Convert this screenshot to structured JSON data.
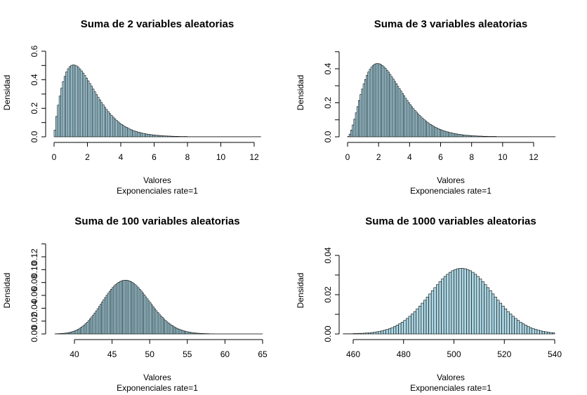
{
  "style": {
    "bar_fill": "#add8e6",
    "bar_stroke": "#000000"
  },
  "chart_data": [
    {
      "type": "bar",
      "title": "Suma de 2 variables aleatorias",
      "xlabel": "Valores",
      "sub": "Exponenciales rate=1",
      "ylabel": "Densidad",
      "xlim": [
        0,
        12.4
      ],
      "ylim": [
        0,
        0.62
      ],
      "xticks": [
        0,
        2,
        4,
        6,
        8,
        10,
        12
      ],
      "xtick_labels": [
        "0",
        "2",
        "4",
        "6",
        "8",
        "10",
        "12"
      ],
      "yticks": [
        0.0,
        0.1,
        0.2,
        0.3,
        0.4,
        0.5,
        0.6
      ],
      "ytick_labels": [
        "0.0",
        "",
        "0.2",
        "",
        "0.4",
        "",
        "0.6"
      ],
      "bin_width": 0.1,
      "bin_start": 0,
      "values": [
        0.047,
        0.143,
        0.222,
        0.286,
        0.341,
        0.387,
        0.424,
        0.455,
        0.477,
        0.492,
        0.501,
        0.504,
        0.502,
        0.497,
        0.488,
        0.476,
        0.462,
        0.447,
        0.43,
        0.412,
        0.393,
        0.374,
        0.355,
        0.335,
        0.316,
        0.296,
        0.277,
        0.259,
        0.241,
        0.224,
        0.207,
        0.192,
        0.177,
        0.163,
        0.15,
        0.138,
        0.126,
        0.115,
        0.105,
        0.096,
        0.087,
        0.08,
        0.072,
        0.066,
        0.06,
        0.054,
        0.049,
        0.044,
        0.04,
        0.036,
        0.033,
        0.03,
        0.027,
        0.024,
        0.022,
        0.02,
        0.018,
        0.016,
        0.015,
        0.013,
        0.012,
        0.011,
        0.01,
        0.009,
        0.008,
        0.007,
        0.006,
        0.006,
        0.005,
        0.005,
        0.004,
        0.004,
        0.003,
        0.003,
        0.003,
        0.002,
        0.002,
        0.002,
        0.002,
        0.002,
        0.001,
        0.001,
        0.001,
        0.001,
        0.001,
        0.001,
        0.001,
        0.001,
        0.001,
        0.001,
        0.001,
        0.001,
        0.001,
        0.001,
        0.001,
        0.001,
        0.001,
        0.001,
        0.001,
        0.001,
        0.001,
        0.001,
        0.001,
        0.001,
        0.001,
        0.001,
        0.001,
        0.001,
        0.001,
        0.001,
        0.001,
        0.001,
        0.001,
        0.001,
        0.001,
        0.001,
        0.001,
        0.001,
        0.001,
        0.001,
        0.001,
        0.001,
        0.001,
        0.001
      ]
    },
    {
      "type": "bar",
      "title": "Suma de 3 variables aleatorias",
      "xlabel": "Valores",
      "sub": "Exponenciales rate=1",
      "ylabel": "Densidad",
      "xlim": [
        0,
        13.4
      ],
      "ylim": [
        0,
        0.51
      ],
      "xticks": [
        0,
        2,
        4,
        6,
        8,
        10,
        12
      ],
      "xtick_labels": [
        "0",
        "2",
        "4",
        "6",
        "8",
        "10",
        "12"
      ],
      "yticks": [
        0.0,
        0.1,
        0.2,
        0.3,
        0.4,
        0.5
      ],
      "ytick_labels": [
        "0.0",
        "",
        "0.2",
        "",
        "0.4",
        ""
      ],
      "bin_width": 0.1,
      "bin_start": 0,
      "values": [
        0.002,
        0.016,
        0.04,
        0.07,
        0.104,
        0.141,
        0.178,
        0.214,
        0.249,
        0.281,
        0.311,
        0.337,
        0.361,
        0.381,
        0.397,
        0.41,
        0.42,
        0.427,
        0.43,
        0.431,
        0.429,
        0.425,
        0.419,
        0.411,
        0.402,
        0.391,
        0.38,
        0.367,
        0.354,
        0.34,
        0.326,
        0.312,
        0.297,
        0.283,
        0.269,
        0.255,
        0.241,
        0.227,
        0.214,
        0.201,
        0.189,
        0.177,
        0.166,
        0.155,
        0.145,
        0.135,
        0.125,
        0.117,
        0.108,
        0.1,
        0.093,
        0.086,
        0.079,
        0.073,
        0.068,
        0.062,
        0.057,
        0.053,
        0.048,
        0.044,
        0.041,
        0.037,
        0.034,
        0.031,
        0.029,
        0.026,
        0.024,
        0.022,
        0.02,
        0.018,
        0.017,
        0.015,
        0.014,
        0.013,
        0.011,
        0.01,
        0.009,
        0.009,
        0.008,
        0.007,
        0.006,
        0.006,
        0.005,
        0.005,
        0.004,
        0.004,
        0.004,
        0.003,
        0.003,
        0.003,
        0.002,
        0.002,
        0.002,
        0.002,
        0.002,
        0.002,
        0.001,
        0.001,
        0.001,
        0.001,
        0.001,
        0.001,
        0.001,
        0.001,
        0.001,
        0.001,
        0.001,
        0.001,
        0.001,
        0.001,
        0.001,
        0.001,
        0.001,
        0.001,
        0.001,
        0.001,
        0.001,
        0.001,
        0.001,
        0.001,
        0.001,
        0.001,
        0.001,
        0.001,
        0.001,
        0.001,
        0.001,
        0.001,
        0.001,
        0.001,
        0.001,
        0.001,
        0.001,
        0.001
      ]
    },
    {
      "type": "bar",
      "title": "Suma de 100 variables aleatorias",
      "xlabel": "Valores",
      "sub": "Exponenciales rate=1",
      "ylabel": "Densidad",
      "xlim": [
        37.4,
        65
      ],
      "ylim": [
        0,
        0.14
      ],
      "xticks": [
        40,
        45,
        50,
        55,
        60,
        65
      ],
      "xtick_labels": [
        "40",
        "45",
        "50",
        "55",
        "60",
        "65"
      ],
      "yticks": [
        0.0,
        0.02,
        0.04,
        0.06,
        0.08,
        0.1,
        0.12,
        0.14
      ],
      "ytick_labels": [
        "0.00",
        "0.02",
        "0.04",
        "0.06",
        "0.08",
        "0.10",
        "0.12",
        ""
      ],
      "bin_width": 0.2,
      "bin_start": 37.4,
      "values": [
        0.0002,
        0.0003,
        0.0004,
        0.0005,
        0.0007,
        0.0009,
        0.0011,
        0.0014,
        0.0018,
        0.0022,
        0.0028,
        0.0034,
        0.0042,
        0.0051,
        0.0061,
        0.0073,
        0.0087,
        0.0102,
        0.0119,
        0.0139,
        0.016,
        0.0183,
        0.0208,
        0.0235,
        0.0264,
        0.0294,
        0.0326,
        0.0359,
        0.0393,
        0.0428,
        0.0463,
        0.0498,
        0.0533,
        0.0568,
        0.0602,
        0.0634,
        0.0665,
        0.0695,
        0.0722,
        0.0747,
        0.0769,
        0.0788,
        0.0804,
        0.0817,
        0.0827,
        0.0833,
        0.0836,
        0.0836,
        0.0832,
        0.0825,
        0.0814,
        0.0801,
        0.0785,
        0.0766,
        0.0744,
        0.072,
        0.0694,
        0.0667,
        0.0638,
        0.0608,
        0.0577,
        0.0546,
        0.0514,
        0.0483,
        0.0452,
        0.0421,
        0.0391,
        0.0362,
        0.0334,
        0.0307,
        0.0281,
        0.0257,
        0.0233,
        0.0211,
        0.0191,
        0.0172,
        0.0154,
        0.0138,
        0.0123,
        0.0109,
        0.0096,
        0.0085,
        0.0075,
        0.0065,
        0.0057,
        0.005,
        0.0043,
        0.0037,
        0.0032,
        0.0028,
        0.0024,
        0.002,
        0.0017,
        0.0015,
        0.0012,
        0.001,
        0.0009,
        0.0007,
        0.0006,
        0.0005,
        0.0004,
        0.0004,
        0.0003,
        0.0002,
        0.0002,
        0.0002,
        0.0001,
        0.0001,
        0.0001,
        0.0001,
        0.0001,
        0.0001,
        0.0001,
        0.0001,
        0.0001,
        0.0001,
        0.0001,
        0.0001,
        0.0001,
        0.0001,
        0.0001,
        0.0001,
        0.0001,
        0.0001,
        0.0001,
        0.0001,
        0.0001,
        0.0001,
        0.0001,
        0.0001,
        0.0001,
        0.0001,
        0.0001,
        0.0001,
        0.0001,
        0.0001,
        0.0001,
        0.0001
      ]
    },
    {
      "type": "bar",
      "title": "Suma de 1000 variables aleatorias",
      "xlabel": "Valores",
      "sub": "Exponenciales rate=1",
      "ylabel": "Densidad",
      "xlim": [
        456,
        540
      ],
      "ylim": [
        0,
        0.045
      ],
      "xticks": [
        460,
        480,
        500,
        520,
        540
      ],
      "xtick_labels": [
        "460",
        "480",
        "500",
        "520",
        "540"
      ],
      "yticks": [
        0.0,
        0.01,
        0.02,
        0.03,
        0.04
      ],
      "ytick_labels": [
        "0.00",
        "",
        "0.02",
        "",
        "0.04"
      ],
      "bin_width": 1,
      "bin_start": 456,
      "values": [
        0.0001,
        0.0001,
        0.0001,
        0.0001,
        0.0002,
        0.0002,
        0.0003,
        0.0003,
        0.0004,
        0.0005,
        0.0006,
        0.0007,
        0.0009,
        0.0011,
        0.0013,
        0.0016,
        0.0019,
        0.0023,
        0.0027,
        0.0032,
        0.0038,
        0.0045,
        0.0052,
        0.006,
        0.0069,
        0.0079,
        0.009,
        0.0102,
        0.0114,
        0.0128,
        0.0142,
        0.0157,
        0.0172,
        0.0188,
        0.0204,
        0.022,
        0.0236,
        0.0251,
        0.0266,
        0.028,
        0.0293,
        0.0304,
        0.0314,
        0.0322,
        0.0328,
        0.0332,
        0.0334,
        0.0334,
        0.0332,
        0.0328,
        0.0322,
        0.0314,
        0.0304,
        0.0293,
        0.028,
        0.0266,
        0.0251,
        0.0236,
        0.022,
        0.0204,
        0.0188,
        0.0172,
        0.0157,
        0.0142,
        0.0128,
        0.0114,
        0.0102,
        0.009,
        0.0079,
        0.0069,
        0.006,
        0.0052,
        0.0045,
        0.0038,
        0.0032,
        0.0027,
        0.0023,
        0.0019,
        0.0016,
        0.0013,
        0.0011,
        0.0009,
        0.0007,
        0.0006
      ]
    }
  ]
}
